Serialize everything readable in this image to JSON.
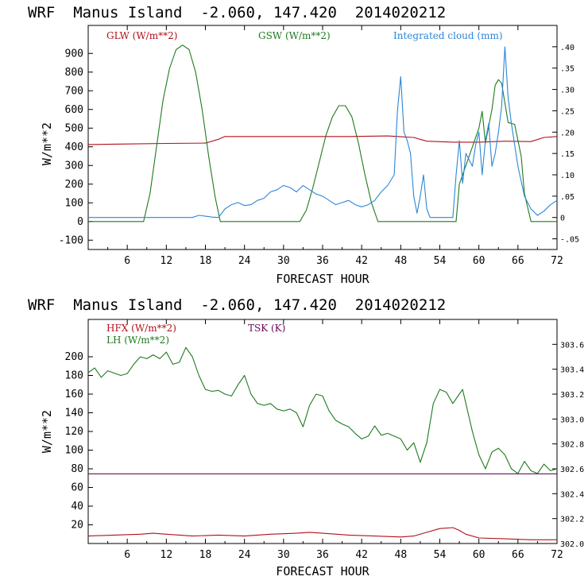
{
  "colors": {
    "red": "#b0101a",
    "green": "#1f7a1f",
    "blue": "#2a86d8",
    "purple": "#6a0a5a",
    "axis": "#000000"
  },
  "chart_data": [
    {
      "type": "line",
      "title": "WRF  Manus Island  -2.060, 147.420  2014020212",
      "xlabel": "FORECAST HOUR",
      "ylabel": "W/m**2",
      "xlim": [
        0,
        72
      ],
      "ylim": [
        -150,
        1050
      ],
      "y2lim": [
        -0.075,
        0.45
      ],
      "xticks": [
        "6",
        "12",
        "18",
        "24",
        "30",
        "36",
        "42",
        "48",
        "54",
        "60",
        "66",
        "72"
      ],
      "yticks": [
        "-100",
        "0",
        "100",
        "200",
        "300",
        "400",
        "500",
        "600",
        "700",
        "800",
        "900"
      ],
      "y2ticks": [
        "-.05",
        "0",
        ".05",
        ".10",
        ".15",
        ".20",
        ".25",
        ".30",
        ".35",
        ".40"
      ],
      "series": [
        {
          "name": "GLW (W/m**2)",
          "color": "red",
          "axis": "left",
          "points": [
            [
              0,
              412
            ],
            [
              6,
              415
            ],
            [
              12,
              418
            ],
            [
              18,
              420
            ],
            [
              20,
              440
            ],
            [
              21,
              455
            ],
            [
              30,
              455
            ],
            [
              40,
              455
            ],
            [
              46,
              458
            ],
            [
              50,
              450
            ],
            [
              52,
              430
            ],
            [
              56,
              425
            ],
            [
              60,
              425
            ],
            [
              64,
              430
            ],
            [
              68,
              428
            ],
            [
              70,
              450
            ],
            [
              72,
              455
            ]
          ]
        },
        {
          "name": "GSW (W/m**2)",
          "color": "green",
          "axis": "left",
          "points": [
            [
              0,
              0
            ],
            [
              8.5,
              0
            ],
            [
              9.5,
              150
            ],
            [
              10.5,
              400
            ],
            [
              11.5,
              650
            ],
            [
              12.5,
              820
            ],
            [
              13.5,
              920
            ],
            [
              14.5,
              945
            ],
            [
              15.5,
              920
            ],
            [
              16.5,
              800
            ],
            [
              17.5,
              600
            ],
            [
              18.5,
              350
            ],
            [
              19.5,
              130
            ],
            [
              20.3,
              0
            ],
            [
              32.5,
              0
            ],
            [
              33.5,
              60
            ],
            [
              34.5,
              180
            ],
            [
              35.5,
              320
            ],
            [
              36.5,
              460
            ],
            [
              37.5,
              560
            ],
            [
              38.5,
              620
            ],
            [
              39.5,
              620
            ],
            [
              40.5,
              560
            ],
            [
              41.5,
              420
            ],
            [
              42.5,
              250
            ],
            [
              43.5,
              100
            ],
            [
              44.5,
              0
            ],
            [
              56.5,
              0
            ],
            [
              57,
              200
            ],
            [
              58,
              300
            ],
            [
              59,
              400
            ],
            [
              60,
              500
            ],
            [
              60.5,
              590
            ],
            [
              61,
              420
            ],
            [
              62,
              600
            ],
            [
              62.5,
              730
            ],
            [
              63,
              760
            ],
            [
              63.5,
              740
            ],
            [
              64.5,
              530
            ],
            [
              65.5,
              520
            ],
            [
              66.5,
              350
            ],
            [
              67,
              150
            ],
            [
              68,
              0
            ],
            [
              72,
              0
            ]
          ]
        },
        {
          "name": "Integrated cloud (mm)",
          "color": "blue",
          "axis": "right",
          "points": [
            [
              0,
              0
            ],
            [
              12,
              0
            ],
            [
              16,
              0
            ],
            [
              17,
              0.005
            ],
            [
              18,
              0.003
            ],
            [
              19,
              0.001
            ],
            [
              20,
              0
            ],
            [
              21,
              0.02
            ],
            [
              22,
              0.03
            ],
            [
              23,
              0.035
            ],
            [
              24,
              0.028
            ],
            [
              25,
              0.03
            ],
            [
              26,
              0.04
            ],
            [
              27,
              0.045
            ],
            [
              28,
              0.06
            ],
            [
              29,
              0.065
            ],
            [
              30,
              0.075
            ],
            [
              31,
              0.07
            ],
            [
              32,
              0.06
            ],
            [
              33,
              0.075
            ],
            [
              34,
              0.065
            ],
            [
              35,
              0.055
            ],
            [
              36,
              0.05
            ],
            [
              37,
              0.04
            ],
            [
              38,
              0.03
            ],
            [
              39,
              0.035
            ],
            [
              40,
              0.04
            ],
            [
              41,
              0.03
            ],
            [
              42,
              0.025
            ],
            [
              43,
              0.03
            ],
            [
              44,
              0.04
            ],
            [
              45,
              0.06
            ],
            [
              46,
              0.075
            ],
            [
              47,
              0.1
            ],
            [
              47.5,
              0.25
            ],
            [
              48,
              0.33
            ],
            [
              48.5,
              0.2
            ],
            [
              49,
              0.18
            ],
            [
              49.5,
              0.15
            ],
            [
              50,
              0.05
            ],
            [
              50.5,
              0.01
            ],
            [
              51,
              0.05
            ],
            [
              51.5,
              0.1
            ],
            [
              52,
              0.02
            ],
            [
              52.5,
              0
            ],
            [
              56,
              0
            ],
            [
              56.5,
              0.1
            ],
            [
              57,
              0.18
            ],
            [
              57.5,
              0.08
            ],
            [
              58,
              0.15
            ],
            [
              59,
              0.12
            ],
            [
              59.5,
              0.17
            ],
            [
              60,
              0.2
            ],
            [
              60.5,
              0.1
            ],
            [
              61,
              0.18
            ],
            [
              61.5,
              0.22
            ],
            [
              62,
              0.12
            ],
            [
              62.5,
              0.15
            ],
            [
              63,
              0.2
            ],
            [
              63.5,
              0.26
            ],
            [
              64,
              0.4
            ],
            [
              64.5,
              0.28
            ],
            [
              65,
              0.22
            ],
            [
              66,
              0.12
            ],
            [
              67,
              0.05
            ],
            [
              68,
              0.02
            ],
            [
              69,
              0.005
            ],
            [
              70,
              0.015
            ],
            [
              71,
              0.03
            ],
            [
              72,
              0.04
            ]
          ]
        }
      ]
    },
    {
      "type": "line",
      "title": "WRF  Manus Island  -2.060, 147.420  2014020212",
      "xlabel": "FORECAST HOUR",
      "ylabel": "W/m**2",
      "xlim": [
        0,
        72
      ],
      "ylim": [
        0,
        240
      ],
      "y2lim": [
        302.0,
        303.8
      ],
      "xticks": [
        "6",
        "12",
        "18",
        "24",
        "30",
        "36",
        "42",
        "48",
        "54",
        "60",
        "66",
        "72"
      ],
      "yticks": [
        "20",
        "40",
        "60",
        "80",
        "100",
        "120",
        "140",
        "160",
        "180",
        "200"
      ],
      "y2ticks": [
        "302.0",
        "302.2",
        "302.4",
        "302.6",
        "302.8",
        "303.0",
        "303.2",
        "303.4",
        "303.6"
      ],
      "series": [
        {
          "name": "HFX (W/m**2)",
          "color": "red",
          "axis": "left",
          "points": [
            [
              0,
              8
            ],
            [
              4,
              9
            ],
            [
              8,
              10
            ],
            [
              10,
              11
            ],
            [
              12,
              10
            ],
            [
              16,
              8
            ],
            [
              20,
              9
            ],
            [
              24,
              8
            ],
            [
              28,
              10
            ],
            [
              32,
              11
            ],
            [
              34,
              12
            ],
            [
              36,
              11
            ],
            [
              40,
              9
            ],
            [
              44,
              8
            ],
            [
              48,
              7
            ],
            [
              50,
              8
            ],
            [
              52,
              12
            ],
            [
              54,
              16
            ],
            [
              56,
              17
            ],
            [
              57,
              14
            ],
            [
              58,
              10
            ],
            [
              60,
              6
            ],
            [
              64,
              5
            ],
            [
              68,
              4
            ],
            [
              72,
              4
            ]
          ]
        },
        {
          "name": "LH  (W/m**2)",
          "color": "green",
          "axis": "left",
          "points": [
            [
              0,
              183
            ],
            [
              1,
              188
            ],
            [
              2,
              178
            ],
            [
              3,
              185
            ],
            [
              5,
              180
            ],
            [
              6,
              182
            ],
            [
              7,
              192
            ],
            [
              8,
              200
            ],
            [
              9,
              198
            ],
            [
              10,
              202
            ],
            [
              11,
              198
            ],
            [
              12,
              205
            ],
            [
              13,
              192
            ],
            [
              14,
              194
            ],
            [
              15,
              210
            ],
            [
              16,
              200
            ],
            [
              17,
              180
            ],
            [
              18,
              165
            ],
            [
              19,
              163
            ],
            [
              20,
              164
            ],
            [
              21,
              160
            ],
            [
              22,
              158
            ],
            [
              23,
              170
            ],
            [
              24,
              180
            ],
            [
              25,
              160
            ],
            [
              26,
              150
            ],
            [
              27,
              148
            ],
            [
              28,
              150
            ],
            [
              29,
              144
            ],
            [
              30,
              142
            ],
            [
              31,
              144
            ],
            [
              32,
              140
            ],
            [
              33,
              125
            ],
            [
              34,
              148
            ],
            [
              35,
              160
            ],
            [
              36,
              158
            ],
            [
              37,
              142
            ],
            [
              38,
              132
            ],
            [
              39,
              128
            ],
            [
              40,
              125
            ],
            [
              41,
              118
            ],
            [
              42,
              112
            ],
            [
              43,
              115
            ],
            [
              44,
              126
            ],
            [
              45,
              116
            ],
            [
              46,
              118
            ],
            [
              47,
              115
            ],
            [
              48,
              112
            ],
            [
              49,
              100
            ],
            [
              50,
              108
            ],
            [
              51,
              87
            ],
            [
              52,
              108
            ],
            [
              53,
              150
            ],
            [
              54,
              165
            ],
            [
              55,
              162
            ],
            [
              56,
              150
            ],
            [
              57,
              160
            ],
            [
              57.5,
              165
            ],
            [
              58,
              150
            ],
            [
              59,
              120
            ],
            [
              60,
              95
            ],
            [
              61,
              80
            ],
            [
              62,
              98
            ],
            [
              63,
              102
            ],
            [
              64,
              95
            ],
            [
              65,
              80
            ],
            [
              66,
              75
            ],
            [
              67,
              88
            ],
            [
              68,
              78
            ],
            [
              69,
              75
            ],
            [
              70,
              85
            ],
            [
              71,
              78
            ],
            [
              72,
              80
            ]
          ]
        },
        {
          "name": "TSK (K)",
          "color": "purple",
          "axis": "right",
          "points": [
            [
              0,
              302.56
            ],
            [
              72,
              302.56
            ]
          ]
        }
      ]
    }
  ]
}
